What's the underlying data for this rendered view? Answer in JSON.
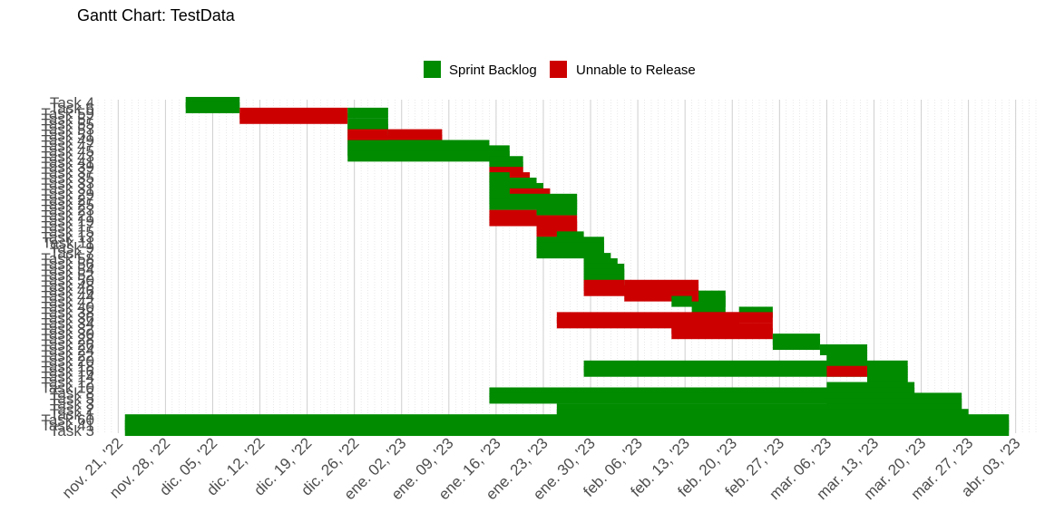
{
  "chart_data": {
    "type": "gantt",
    "title": "Gantt Chart: TestData",
    "legend": {
      "position": "top",
      "items": [
        {
          "label": "Sprint Backlog",
          "color": "#008B00"
        },
        {
          "label": "Unnable to Release",
          "color": "#CD0000"
        }
      ]
    },
    "x_ticks": [
      "nov. 21, '22",
      "nov. 28, '22",
      "dic. 05, '22",
      "dic. 12, '22",
      "dic. 19, '22",
      "dic. 26, '22",
      "ene. 02, '23",
      "ene. 09, '23",
      "ene. 16, '23",
      "ene. 23, '23",
      "ene. 30, '23",
      "feb. 06, '23",
      "feb. 13, '23",
      "feb. 20, '23",
      "feb. 27, '23",
      "mar. 06, '23",
      "mar. 13, '23",
      "mar. 20, '23",
      "mar. 27, '23",
      "abr. 03, '23"
    ],
    "x_tick_dates": [
      "2022-11-21",
      "2022-11-28",
      "2022-12-05",
      "2022-12-12",
      "2022-12-19",
      "2022-12-26",
      "2023-01-02",
      "2023-01-09",
      "2023-01-16",
      "2023-01-23",
      "2023-01-30",
      "2023-02-06",
      "2023-02-13",
      "2023-02-20",
      "2023-02-27",
      "2023-03-06",
      "2023-03-13",
      "2023-03-20",
      "2023-03-27",
      "2023-04-03"
    ],
    "xlim": [
      "2022-11-18",
      "2023-04-06"
    ],
    "grid": true,
    "y_labels": [
      "Task 4",
      "Task 6",
      "Task 59",
      "Task 57",
      "Task 55",
      "Task 53",
      "Task 51",
      "Task 49",
      "Task 47",
      "Task 45",
      "Task 43",
      "Task 41",
      "Task 39",
      "Task 37",
      "Task 35",
      "Task 33",
      "Task 31",
      "Task 29",
      "Task 27",
      "Task 25",
      "Task 23",
      "Task 21",
      "Task 19",
      "Task 17",
      "Task 15",
      "Task 13",
      "Task 11",
      "Task 9",
      "Task 7",
      "Task 58",
      "Task 56",
      "Task 54",
      "Task 52",
      "Task 50",
      "Task 48",
      "Task 46",
      "Task 44",
      "Task 42",
      "Task 40",
      "Task 38",
      "Task 36",
      "Task 34",
      "Task 32",
      "Task 30",
      "Task 28",
      "Task 26",
      "Task 24",
      "Task 22",
      "Task 20",
      "Task 18",
      "Task 16",
      "Task 14",
      "Task 12",
      "Task 10",
      "Task 8",
      "Task 5",
      "Task 3",
      "Task 2",
      "Task 1",
      "Task 60",
      "Task 41",
      "Task 3"
    ],
    "bars": [
      {
        "row": 0,
        "start": "2022-12-01",
        "end": "2022-12-09",
        "status": "Sprint Backlog"
      },
      {
        "row": 1,
        "start": "2022-12-01",
        "end": "2022-12-09",
        "status": "Sprint Backlog"
      },
      {
        "row": 2,
        "start": "2022-12-09",
        "end": "2022-12-25",
        "status": "Unnable to Release"
      },
      {
        "row": 3,
        "start": "2022-12-09",
        "end": "2022-12-25",
        "status": "Unnable to Release"
      },
      {
        "row": 4,
        "start": "2022-12-25",
        "end": "2022-12-31",
        "status": "Sprint Backlog"
      },
      {
        "row": 5,
        "start": "2022-12-25",
        "end": "2022-12-31",
        "status": "Sprint Backlog"
      },
      {
        "row": 6,
        "start": "2022-12-31",
        "end": "2023-01-08",
        "status": "Unnable to Release"
      },
      {
        "row": 7,
        "start": "2022-12-25",
        "end": "2023-01-08",
        "status": "Unnable to Release"
      },
      {
        "row": 8,
        "start": "2022-12-25",
        "end": "2023-01-15",
        "status": "Sprint Backlog"
      },
      {
        "row": 9,
        "start": "2022-12-25",
        "end": "2023-01-18",
        "status": "Sprint Backlog"
      },
      {
        "row": 10,
        "start": "2022-12-25",
        "end": "2023-01-18",
        "status": "Sprint Backlog"
      },
      {
        "row": 11,
        "start": "2023-01-15",
        "end": "2023-01-20",
        "status": "Sprint Backlog"
      },
      {
        "row": 12,
        "start": "2023-01-15",
        "end": "2023-01-20",
        "status": "Sprint Backlog"
      },
      {
        "row": 13,
        "start": "2023-01-15",
        "end": "2023-01-20",
        "status": "Unnable to Release"
      },
      {
        "row": 14,
        "start": "2023-01-15",
        "end": "2023-01-21",
        "status": "Unnable to Release"
      },
      {
        "row": 15,
        "start": "2023-01-15",
        "end": "2023-01-22",
        "status": "Sprint Backlog"
      },
      {
        "row": 16,
        "start": "2023-01-15",
        "end": "2023-01-23",
        "status": "Sprint Backlog"
      },
      {
        "row": 17,
        "start": "2023-01-18",
        "end": "2023-01-24",
        "status": "Unnable to Release"
      },
      {
        "row": 18,
        "start": "2023-01-15",
        "end": "2023-01-28",
        "status": "Sprint Backlog"
      },
      {
        "row": 19,
        "start": "2023-01-15",
        "end": "2023-01-28",
        "status": "Sprint Backlog"
      },
      {
        "row": 20,
        "start": "2023-01-22",
        "end": "2023-01-28",
        "status": "Sprint Backlog"
      },
      {
        "row": 21,
        "start": "2023-01-15",
        "end": "2023-01-22",
        "status": "Unnable to Release"
      },
      {
        "row": 22,
        "start": "2023-01-15",
        "end": "2023-01-28",
        "status": "Unnable to Release"
      },
      {
        "row": 23,
        "start": "2023-01-22",
        "end": "2023-01-28",
        "status": "Unnable to Release"
      },
      {
        "row": 24,
        "start": "2023-01-22",
        "end": "2023-01-28",
        "status": "Unnable to Release"
      },
      {
        "row": 25,
        "start": "2023-01-25",
        "end": "2023-01-29",
        "status": "Sprint Backlog"
      },
      {
        "row": 26,
        "start": "2023-01-22",
        "end": "2023-02-01",
        "status": "Sprint Backlog"
      },
      {
        "row": 27,
        "start": "2023-01-22",
        "end": "2023-02-01",
        "status": "Sprint Backlog"
      },
      {
        "row": 28,
        "start": "2023-01-22",
        "end": "2023-02-01",
        "status": "Sprint Backlog"
      },
      {
        "row": 29,
        "start": "2023-01-29",
        "end": "2023-02-02",
        "status": "Sprint Backlog"
      },
      {
        "row": 30,
        "start": "2023-01-29",
        "end": "2023-02-03",
        "status": "Sprint Backlog"
      },
      {
        "row": 31,
        "start": "2023-01-29",
        "end": "2023-02-04",
        "status": "Sprint Backlog"
      },
      {
        "row": 32,
        "start": "2023-01-29",
        "end": "2023-02-04",
        "status": "Sprint Backlog"
      },
      {
        "row": 33,
        "start": "2023-01-29",
        "end": "2023-02-04",
        "status": "Sprint Backlog"
      },
      {
        "row": 34,
        "start": "2023-02-04",
        "end": "2023-02-15",
        "status": "Unnable to Release"
      },
      {
        "row": 35,
        "start": "2023-01-29",
        "end": "2023-02-15",
        "status": "Unnable to Release"
      },
      {
        "row": 36,
        "start": "2023-02-11",
        "end": "2023-02-19",
        "status": "Sprint Backlog"
      },
      {
        "row": 37,
        "start": "2023-02-14",
        "end": "2023-02-19",
        "status": "Sprint Backlog"
      },
      {
        "row": 38,
        "start": "2023-02-14",
        "end": "2023-02-19",
        "status": "Sprint Backlog"
      },
      {
        "row": 39,
        "start": "2023-02-21",
        "end": "2023-02-26",
        "status": "Sprint Backlog"
      },
      {
        "row": 40,
        "start": "2023-01-25",
        "end": "2023-02-21",
        "status": "Unnable to Release"
      },
      {
        "row": 41,
        "start": "2023-01-25",
        "end": "2023-02-21",
        "status": "Unnable to Release"
      },
      {
        "row": 42,
        "start": "2023-02-11",
        "end": "2023-02-26",
        "status": "Unnable to Release"
      },
      {
        "row": 43,
        "start": "2023-02-11",
        "end": "2023-02-26",
        "status": "Unnable to Release"
      },
      {
        "row": 44,
        "start": "2023-02-26",
        "end": "2023-03-05",
        "status": "Sprint Backlog"
      },
      {
        "row": 45,
        "start": "2023-02-26",
        "end": "2023-03-05",
        "status": "Sprint Backlog"
      },
      {
        "row": 46,
        "start": "2023-03-05",
        "end": "2023-03-12",
        "status": "Sprint Backlog"
      },
      {
        "row": 47,
        "start": "2023-03-06",
        "end": "2023-03-12",
        "status": "Sprint Backlog"
      },
      {
        "row": 48,
        "start": "2023-03-06",
        "end": "2023-03-12",
        "status": "Sprint Backlog"
      },
      {
        "row": 49,
        "start": "2023-01-29",
        "end": "2023-03-18",
        "status": "Sprint Backlog"
      },
      {
        "row": 50,
        "start": "2023-01-29",
        "end": "2023-03-18",
        "status": "Sprint Backlog"
      },
      {
        "row": 51,
        "start": "2023-03-12",
        "end": "2023-03-18",
        "status": "Sprint Backlog"
      },
      {
        "row": 52,
        "start": "2023-03-12",
        "end": "2023-03-18",
        "status": "Sprint Backlog"
      },
      {
        "row": 53,
        "start": "2023-03-06",
        "end": "2023-03-19",
        "status": "Sprint Backlog"
      },
      {
        "row": 54,
        "start": "2023-01-15",
        "end": "2023-03-19",
        "status": "Sprint Backlog"
      },
      {
        "row": 55,
        "start": "2023-01-15",
        "end": "2023-03-26",
        "status": "Sprint Backlog"
      },
      {
        "row": 56,
        "start": "2023-03-06",
        "end": "2023-03-26",
        "status": "Sprint Backlog"
      },
      {
        "row": 57,
        "start": "2023-01-25",
        "end": "2023-03-26",
        "status": "Sprint Backlog"
      },
      {
        "row": 58,
        "start": "2023-01-25",
        "end": "2023-03-27",
        "status": "Sprint Backlog"
      },
      {
        "row": 59,
        "start": "2022-11-22",
        "end": "2023-04-02",
        "status": "Sprint Backlog"
      },
      {
        "row": 60,
        "start": "2022-11-22",
        "end": "2023-04-02",
        "status": "Sprint Backlog"
      },
      {
        "row": 61,
        "start": "2022-11-22",
        "end": "2023-04-02",
        "status": "Sprint Backlog"
      },
      {
        "row": 2,
        "start": "2022-12-25",
        "end": "2022-12-31",
        "status": "Sprint Backlog"
      },
      {
        "row": 6,
        "start": "2022-12-25",
        "end": "2022-12-31",
        "status": "Unnable to Release"
      },
      {
        "row": 14,
        "start": "2023-01-15",
        "end": "2023-01-18",
        "status": "Sprint Backlog"
      },
      {
        "row": 17,
        "start": "2023-01-15",
        "end": "2023-01-18",
        "status": "Sprint Backlog"
      },
      {
        "row": 34,
        "start": "2023-01-29",
        "end": "2023-02-04",
        "status": "Unnable to Release"
      },
      {
        "row": 36,
        "start": "2023-02-04",
        "end": "2023-02-15",
        "status": "Unnable to Release"
      },
      {
        "row": 37,
        "start": "2023-02-11",
        "end": "2023-02-14",
        "status": "Sprint Backlog"
      },
      {
        "row": 40,
        "start": "2023-02-14",
        "end": "2023-02-26",
        "status": "Unnable to Release"
      },
      {
        "row": 50,
        "start": "2023-03-06",
        "end": "2023-03-12",
        "status": "Unnable to Release"
      }
    ]
  }
}
